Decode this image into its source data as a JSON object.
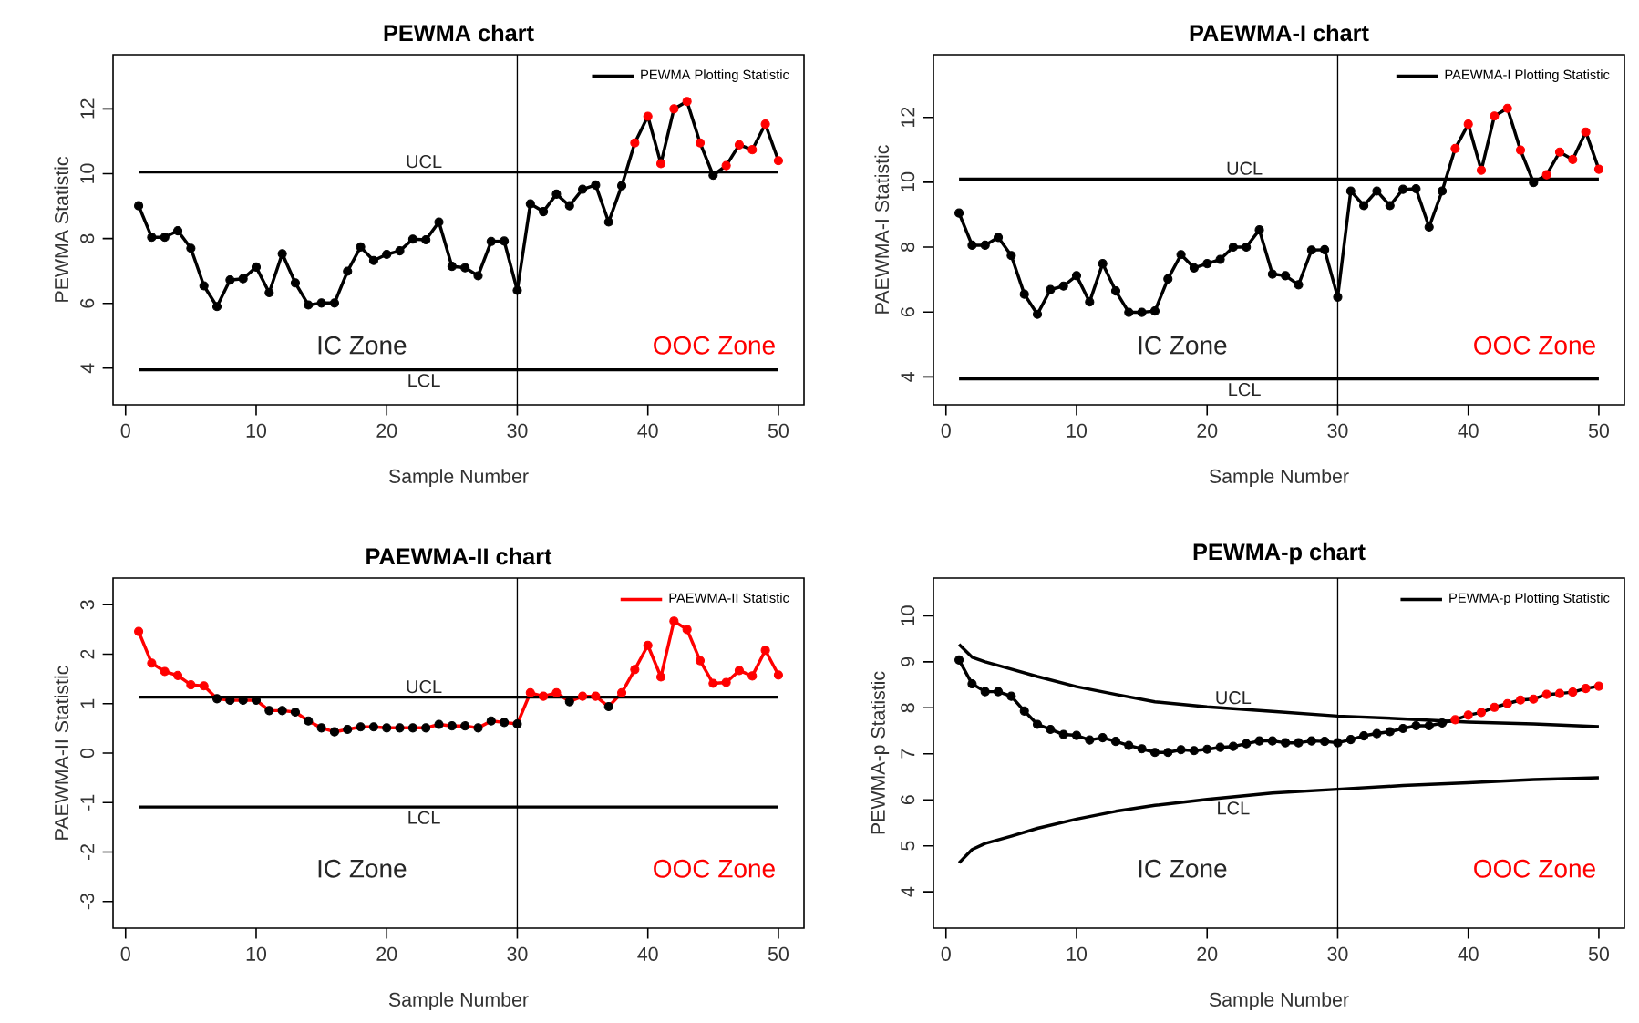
{
  "chart_data": [
    {
      "type": "line",
      "title": "PEWMA chart",
      "xlabel": "Sample Number",
      "ylabel": "PEWMA Statistic",
      "legend": "top right",
      "marker": "circle",
      "xlim": [
        -0.96,
        51.96
      ],
      "ylim": [
        2.87,
        13.67
      ],
      "xticks": [
        0,
        10,
        20,
        30,
        40,
        50
      ],
      "yticks": [
        4,
        6,
        8,
        10,
        12
      ],
      "x": [
        1,
        2,
        3,
        4,
        5,
        6,
        7,
        8,
        9,
        10,
        11,
        12,
        13,
        14,
        15,
        16,
        17,
        18,
        19,
        20,
        21,
        22,
        23,
        24,
        25,
        26,
        27,
        28,
        29,
        30,
        31,
        32,
        33,
        34,
        35,
        36,
        37,
        38,
        39,
        40,
        41,
        42,
        43,
        44,
        45,
        46,
        47,
        48,
        49,
        50
      ],
      "series": [
        {
          "name": "PEWMA Plotting Statistic",
          "color": "#000000",
          "values": [
            9.01,
            8.04,
            8.04,
            8.24,
            7.7,
            6.54,
            5.9,
            6.72,
            6.76,
            7.12,
            6.33,
            7.53,
            6.63,
            5.95,
            6.01,
            6.01,
            6.99,
            7.74,
            7.32,
            7.51,
            7.62,
            7.98,
            7.96,
            8.51,
            7.14,
            7.1,
            6.85,
            7.91,
            7.92,
            6.4,
            9.07,
            8.83,
            9.37,
            9.01,
            9.52,
            9.65,
            8.51,
            9.63,
            10.95,
            11.77,
            10.31,
            12.0,
            12.23,
            10.95,
            9.95,
            10.25,
            10.89,
            10.74,
            11.53,
            10.4
          ],
          "colors": [
            "#000000",
            "#000000",
            "#000000",
            "#000000",
            "#000000",
            "#000000",
            "#000000",
            "#000000",
            "#000000",
            "#000000",
            "#000000",
            "#000000",
            "#000000",
            "#000000",
            "#000000",
            "#000000",
            "#000000",
            "#000000",
            "#000000",
            "#000000",
            "#000000",
            "#000000",
            "#000000",
            "#000000",
            "#000000",
            "#000000",
            "#000000",
            "#000000",
            "#000000",
            "#000000",
            "#000000",
            "#000000",
            "#000000",
            "#000000",
            "#000000",
            "#000000",
            "#000000",
            "#000000",
            "#ff0000",
            "#ff0000",
            "#ff0000",
            "#ff0000",
            "#ff0000",
            "#ff0000",
            "#000000",
            "#ff0000",
            "#ff0000",
            "#ff0000",
            "#ff0000",
            "#ff0000"
          ]
        }
      ],
      "ref_lines": [
        {
          "axis": "y",
          "value": 10.05,
          "label": "UCL"
        },
        {
          "axis": "y",
          "value": 3.95,
          "label": "LCL"
        },
        {
          "axis": "x",
          "value": 30
        }
      ],
      "annotations": [
        "IC Zone",
        "OOC Zone"
      ]
    },
    {
      "type": "line",
      "title": "PAEWMA-I chart",
      "xlabel": "Sample Number",
      "ylabel": "PAEWMA-I Statistic",
      "legend": "top right",
      "marker": "circle",
      "xlim": [
        -0.96,
        51.96
      ],
      "ylim": [
        3.14,
        13.93
      ],
      "xticks": [
        0,
        10,
        20,
        30,
        40,
        50
      ],
      "yticks": [
        4,
        6,
        8,
        10,
        12
      ],
      "x": [
        1,
        2,
        3,
        4,
        5,
        6,
        7,
        8,
        9,
        10,
        11,
        12,
        13,
        14,
        15,
        16,
        17,
        18,
        19,
        20,
        21,
        22,
        23,
        24,
        25,
        26,
        27,
        28,
        29,
        30,
        31,
        32,
        33,
        34,
        35,
        36,
        37,
        38,
        39,
        40,
        41,
        42,
        43,
        44,
        45,
        46,
        47,
        48,
        49,
        50
      ],
      "series": [
        {
          "name": "PAEWMA-I Plotting Statistic",
          "color": "#000000",
          "values": [
            9.05,
            8.06,
            8.06,
            8.3,
            7.74,
            6.55,
            5.93,
            6.69,
            6.8,
            7.12,
            6.31,
            7.49,
            6.65,
            5.99,
            5.99,
            6.03,
            7.02,
            7.77,
            7.36,
            7.49,
            7.62,
            8.0,
            8.0,
            8.53,
            7.17,
            7.12,
            6.84,
            7.91,
            7.92,
            6.46,
            9.73,
            9.28,
            9.73,
            9.28,
            9.78,
            9.8,
            8.62,
            9.73,
            11.04,
            11.79,
            10.37,
            12.04,
            12.28,
            10.99,
            9.99,
            10.23,
            10.93,
            10.7,
            11.55,
            10.4
          ],
          "colors": [
            "#000000",
            "#000000",
            "#000000",
            "#000000",
            "#000000",
            "#000000",
            "#000000",
            "#000000",
            "#000000",
            "#000000",
            "#000000",
            "#000000",
            "#000000",
            "#000000",
            "#000000",
            "#000000",
            "#000000",
            "#000000",
            "#000000",
            "#000000",
            "#000000",
            "#000000",
            "#000000",
            "#000000",
            "#000000",
            "#000000",
            "#000000",
            "#000000",
            "#000000",
            "#000000",
            "#000000",
            "#000000",
            "#000000",
            "#000000",
            "#000000",
            "#000000",
            "#000000",
            "#000000",
            "#ff0000",
            "#ff0000",
            "#ff0000",
            "#ff0000",
            "#ff0000",
            "#ff0000",
            "#000000",
            "#ff0000",
            "#ff0000",
            "#ff0000",
            "#ff0000",
            "#ff0000"
          ]
        }
      ],
      "ref_lines": [
        {
          "axis": "y",
          "value": 10.1,
          "label": "UCL"
        },
        {
          "axis": "y",
          "value": 3.94,
          "label": "LCL"
        },
        {
          "axis": "x",
          "value": 30
        }
      ],
      "annotations": [
        "IC Zone",
        "OOC Zone"
      ]
    },
    {
      "type": "line",
      "title": "PAEWMA-II chart",
      "xlabel": "Sample Number",
      "ylabel": "PAEWMA-II Statistic",
      "legend": "top right",
      "marker": "circle",
      "xlim": [
        -0.96,
        51.96
      ],
      "ylim": [
        -3.54,
        3.54
      ],
      "xticks": [
        0,
        10,
        20,
        30,
        40,
        50
      ],
      "yticks": [
        -3,
        -2,
        -1,
        0,
        1,
        2,
        3
      ],
      "x": [
        1,
        2,
        3,
        4,
        5,
        6,
        7,
        8,
        9,
        10,
        11,
        12,
        13,
        14,
        15,
        16,
        17,
        18,
        19,
        20,
        21,
        22,
        23,
        24,
        25,
        26,
        27,
        28,
        29,
        30,
        31,
        32,
        33,
        34,
        35,
        36,
        37,
        38,
        39,
        40,
        41,
        42,
        43,
        44,
        45,
        46,
        47,
        48,
        49,
        50
      ],
      "series": [
        {
          "name": "PAEWMA-II Statistic",
          "color": "#ff0000",
          "values": [
            2.46,
            1.82,
            1.65,
            1.57,
            1.38,
            1.36,
            1.1,
            1.07,
            1.07,
            1.07,
            0.86,
            0.86,
            0.83,
            0.65,
            0.51,
            0.43,
            0.48,
            0.53,
            0.53,
            0.51,
            0.51,
            0.51,
            0.51,
            0.58,
            0.55,
            0.55,
            0.51,
            0.65,
            0.62,
            0.59,
            1.22,
            1.15,
            1.22,
            1.04,
            1.15,
            1.15,
            0.94,
            1.22,
            1.69,
            2.18,
            1.54,
            2.67,
            2.5,
            1.87,
            1.41,
            1.43,
            1.67,
            1.56,
            2.08,
            1.58
          ],
          "colors": [
            "#ff0000",
            "#ff0000",
            "#ff0000",
            "#ff0000",
            "#ff0000",
            "#ff0000",
            "#000000",
            "#000000",
            "#000000",
            "#000000",
            "#000000",
            "#000000",
            "#000000",
            "#000000",
            "#000000",
            "#000000",
            "#000000",
            "#000000",
            "#000000",
            "#000000",
            "#000000",
            "#000000",
            "#000000",
            "#000000",
            "#000000",
            "#000000",
            "#000000",
            "#000000",
            "#000000",
            "#000000",
            "#ff0000",
            "#ff0000",
            "#ff0000",
            "#000000",
            "#ff0000",
            "#ff0000",
            "#000000",
            "#ff0000",
            "#ff0000",
            "#ff0000",
            "#ff0000",
            "#ff0000",
            "#ff0000",
            "#ff0000",
            "#ff0000",
            "#ff0000",
            "#ff0000",
            "#ff0000",
            "#ff0000",
            "#ff0000"
          ]
        }
      ],
      "ref_lines": [
        {
          "axis": "y",
          "value": 1.13,
          "label": "UCL"
        },
        {
          "axis": "y",
          "value": -1.09,
          "label": "LCL"
        },
        {
          "axis": "x",
          "value": 30
        }
      ],
      "annotations": [
        "IC Zone",
        "OOC Zone"
      ]
    },
    {
      "type": "line",
      "title": "PEWMA-p chart",
      "xlabel": "Sample Number",
      "ylabel": "PEWMA-p Statistic",
      "legend": "top right",
      "marker": "circle",
      "xlim": [
        -0.96,
        51.96
      ],
      "ylim": [
        3.21,
        10.82
      ],
      "xticks": [
        0,
        10,
        20,
        30,
        40,
        50
      ],
      "yticks": [
        4,
        5,
        6,
        7,
        8,
        9,
        10
      ],
      "x": [
        1,
        2,
        3,
        4,
        5,
        6,
        7,
        8,
        9,
        10,
        11,
        12,
        13,
        14,
        15,
        16,
        17,
        18,
        19,
        20,
        21,
        22,
        23,
        24,
        25,
        26,
        27,
        28,
        29,
        30,
        31,
        32,
        33,
        34,
        35,
        36,
        37,
        38,
        39,
        40,
        41,
        42,
        43,
        44,
        45,
        46,
        47,
        48,
        49,
        50
      ],
      "series": [
        {
          "name": "PEWMA-p Plotting Statistic",
          "color": "#000000",
          "values": [
            9.04,
            8.52,
            8.35,
            8.35,
            8.25,
            7.93,
            7.64,
            7.53,
            7.42,
            7.4,
            7.3,
            7.35,
            7.27,
            7.18,
            7.11,
            7.03,
            7.03,
            7.09,
            7.07,
            7.1,
            7.14,
            7.16,
            7.22,
            7.28,
            7.28,
            7.24,
            7.24,
            7.28,
            7.27,
            7.24,
            7.31,
            7.39,
            7.44,
            7.48,
            7.55,
            7.61,
            7.61,
            7.67,
            7.74,
            7.84,
            7.9,
            8.01,
            8.09,
            8.17,
            8.19,
            8.29,
            8.31,
            8.34,
            8.42,
            8.47
          ],
          "colors": [
            "#000000",
            "#000000",
            "#000000",
            "#000000",
            "#000000",
            "#000000",
            "#000000",
            "#000000",
            "#000000",
            "#000000",
            "#000000",
            "#000000",
            "#000000",
            "#000000",
            "#000000",
            "#000000",
            "#000000",
            "#000000",
            "#000000",
            "#000000",
            "#000000",
            "#000000",
            "#000000",
            "#000000",
            "#000000",
            "#000000",
            "#000000",
            "#000000",
            "#000000",
            "#000000",
            "#000000",
            "#000000",
            "#000000",
            "#000000",
            "#000000",
            "#000000",
            "#000000",
            "#000000",
            "#ff0000",
            "#ff0000",
            "#ff0000",
            "#ff0000",
            "#ff0000",
            "#ff0000",
            "#ff0000",
            "#ff0000",
            "#ff0000",
            "#ff0000",
            "#ff0000",
            "#ff0000"
          ]
        },
        {
          "type": "line",
          "marker": "none",
          "color": "#000000",
          "x": [
            1,
            2,
            3,
            5,
            7,
            10,
            13,
            16,
            20,
            25,
            30,
            35,
            40,
            45,
            50
          ],
          "values": [
            9.38,
            9.1,
            9.0,
            8.84,
            8.68,
            8.46,
            8.29,
            8.13,
            8.02,
            7.92,
            7.82,
            7.76,
            7.69,
            7.65,
            7.59
          ]
        },
        {
          "type": "line",
          "marker": "none",
          "color": "#000000",
          "x": [
            1,
            2,
            3,
            5,
            7,
            10,
            13,
            16,
            20,
            25,
            30,
            35,
            40,
            45,
            50
          ],
          "values": [
            4.63,
            4.92,
            5.05,
            5.21,
            5.38,
            5.58,
            5.75,
            5.88,
            6.01,
            6.15,
            6.23,
            6.31,
            6.37,
            6.44,
            6.48
          ]
        }
      ],
      "ref_lines": [
        {
          "axis": "x",
          "value": 30
        }
      ],
      "annotations": [
        {
          "text": "UCL",
          "x": 22,
          "y": 7.99
        },
        {
          "text": "LCL",
          "x": 22,
          "y": 6.05
        },
        "IC Zone",
        "OOC Zone"
      ]
    }
  ]
}
